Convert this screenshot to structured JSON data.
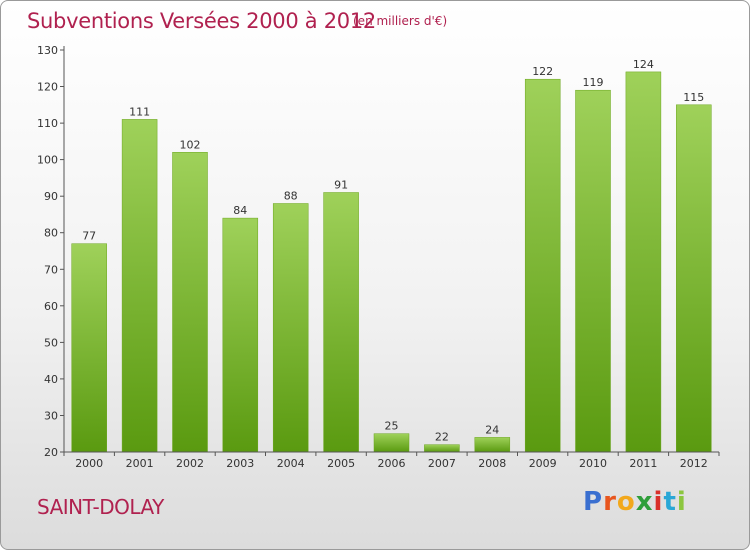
{
  "header": {
    "title": "Subventions Versées 2000 à 2012",
    "subtitle": "(en milliers d'€)"
  },
  "footer": {
    "commune": "SAINT-DOLAY",
    "logo_text": "Proxiti"
  },
  "colors": {
    "title": "#b0214f",
    "bar_light": "#9fd15a",
    "bar_dark": "#5a9a10",
    "axis": "#555555"
  },
  "chart_data": {
    "type": "bar",
    "categories": [
      "2000",
      "2001",
      "2002",
      "2003",
      "2004",
      "2005",
      "2006",
      "2007",
      "2008",
      "2009",
      "2010",
      "2011",
      "2012"
    ],
    "values": [
      77,
      111,
      102,
      84,
      88,
      91,
      25,
      22,
      24,
      122,
      119,
      124,
      115
    ],
    "ylim": [
      20,
      130
    ],
    "yticks": [
      20,
      30,
      40,
      50,
      60,
      70,
      80,
      90,
      100,
      110,
      120,
      130
    ],
    "grid": false,
    "legend": "none"
  }
}
